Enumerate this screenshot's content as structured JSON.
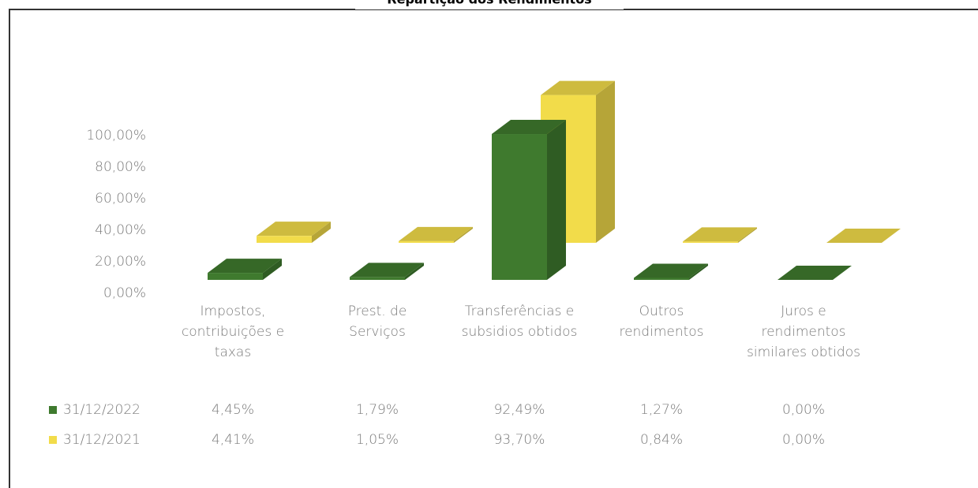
{
  "chart_data": {
    "type": "bar3d",
    "title": "Repartição dos Rendimentos",
    "categories": [
      "Impostos, contribuições e taxas",
      "Prest. de Serviços",
      "Transferências e subsidios obtidos",
      "Outros rendimentos",
      "Juros e rendimentos similares obtidos"
    ],
    "series": [
      {
        "name": "31/12/2022",
        "color": "#3f7a2e",
        "values": [
          4.45,
          1.79,
          92.49,
          1.27,
          0.0
        ],
        "value_labels": [
          "4,45%",
          "1,79%",
          "92,49%",
          "1,27%",
          "0,00%"
        ]
      },
      {
        "name": "31/12/2021",
        "color": "#f2dc4a",
        "values": [
          4.41,
          1.05,
          93.7,
          0.84,
          0.0
        ],
        "value_labels": [
          "4,41%",
          "1,05%",
          "93,70%",
          "0,84%",
          "0,00%"
        ]
      }
    ],
    "ylim": [
      0,
      100
    ],
    "yticks": [
      {
        "value": 0,
        "label": "0,00%"
      },
      {
        "value": 20,
        "label": "20,00%"
      },
      {
        "value": 40,
        "label": "40,00%"
      },
      {
        "value": 60,
        "label": "60,00%"
      },
      {
        "value": 80,
        "label": "80,00%"
      },
      {
        "value": 100,
        "label": "100,00%"
      }
    ]
  }
}
